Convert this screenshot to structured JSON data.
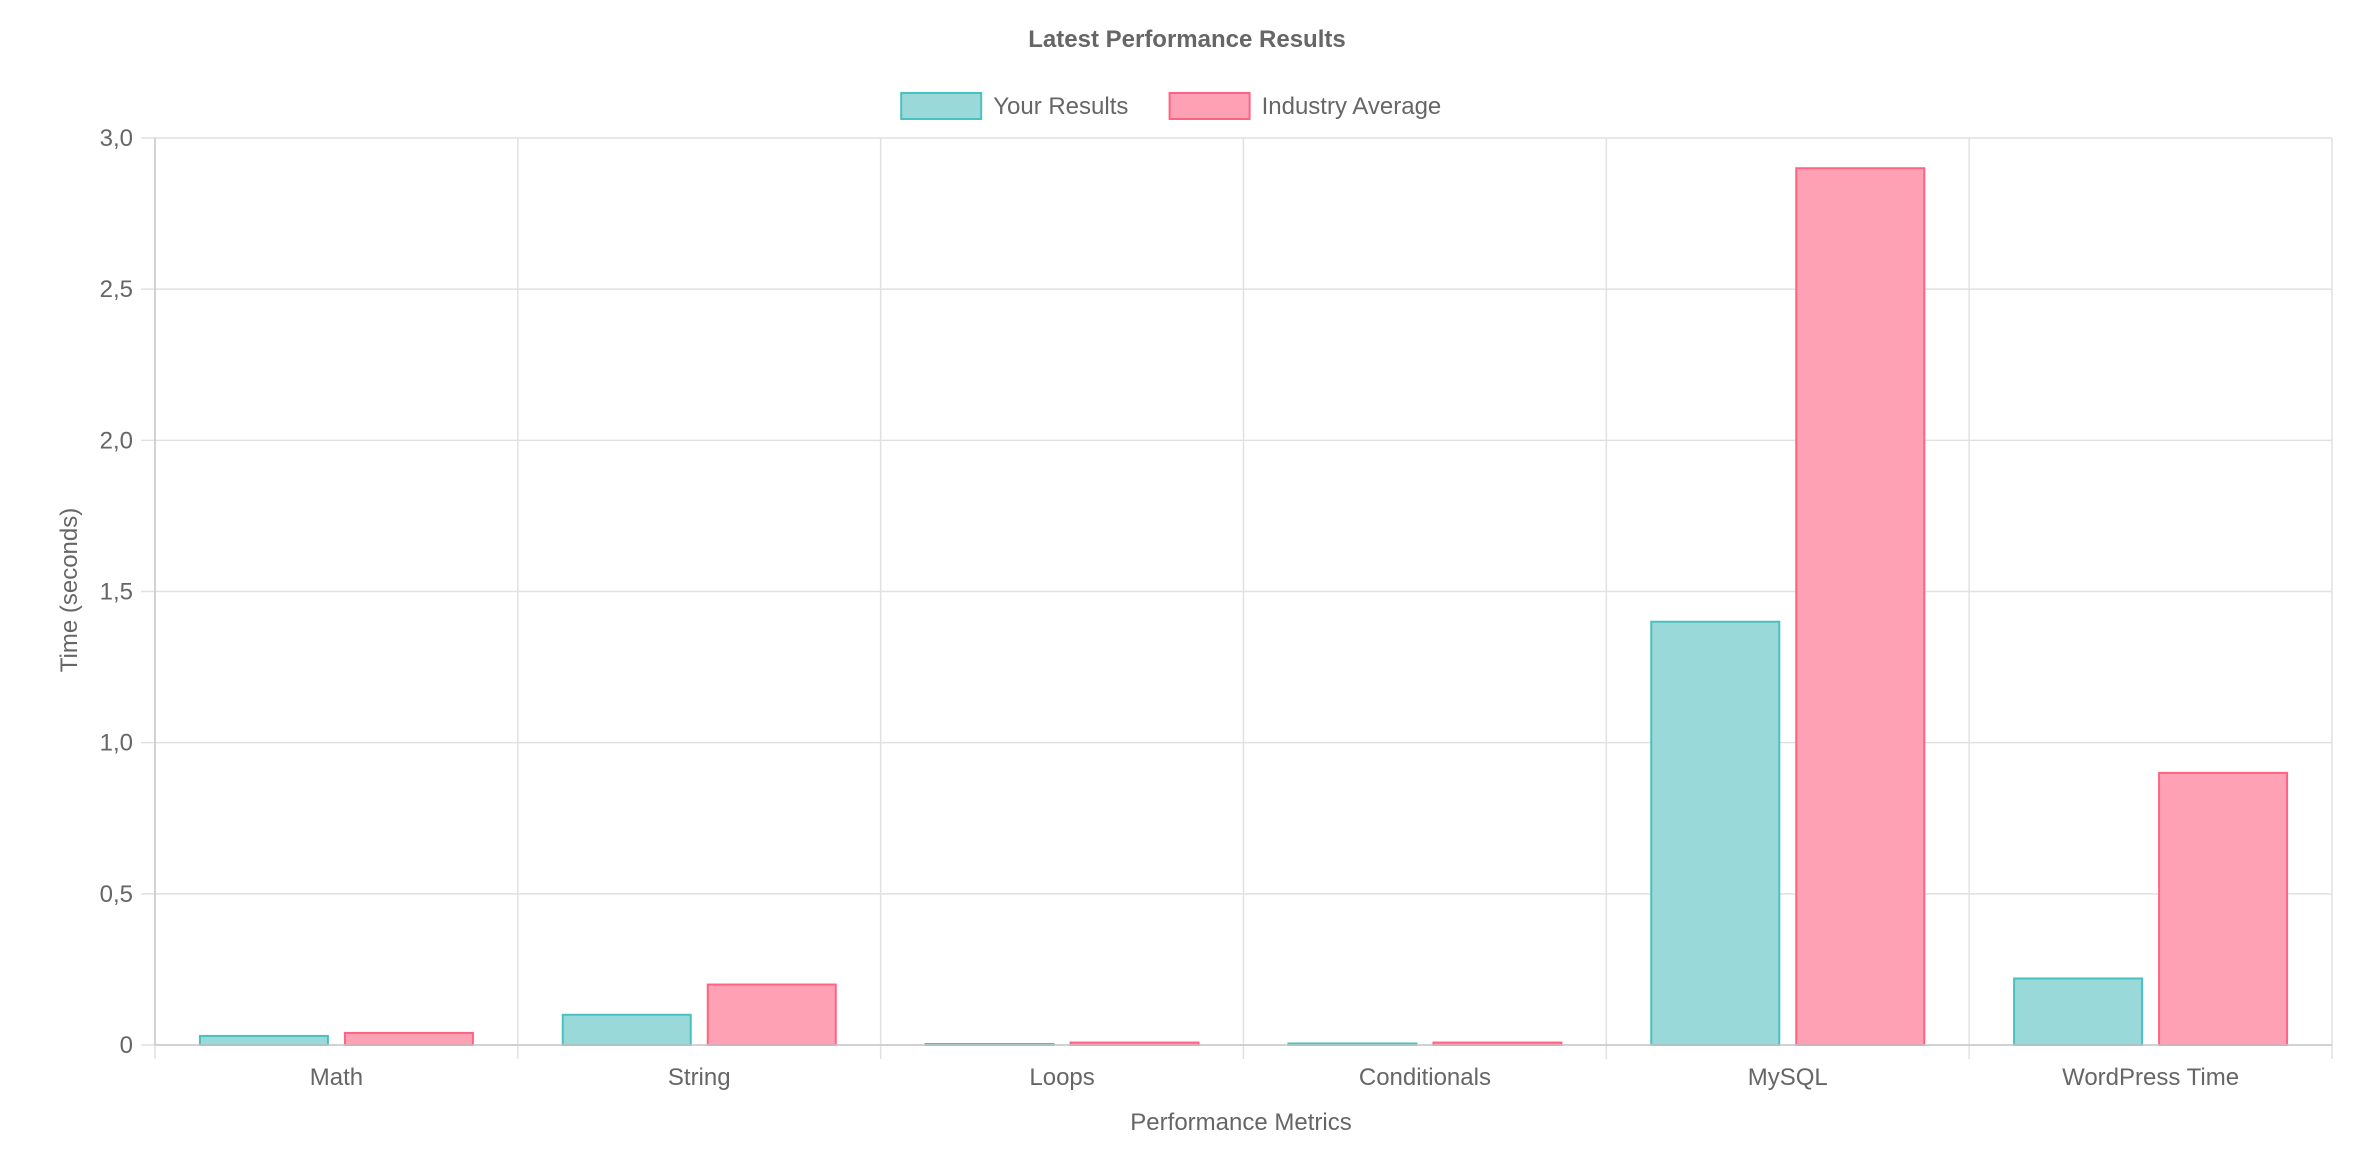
{
  "chart_data": {
    "type": "bar",
    "title": "Latest Performance Results",
    "xlabel": "Performance Metrics",
    "ylabel": "Time (seconds)",
    "categories": [
      "Math",
      "String",
      "Loops",
      "Conditionals",
      "MySQL",
      "WordPress Time"
    ],
    "series": [
      {
        "name": "Your Results",
        "values": [
          0.03,
          0.1,
          0.003,
          0.005,
          1.4,
          0.22
        ],
        "fill": "#9ad9d9",
        "stroke": "#4bc0c0"
      },
      {
        "name": "Industry Average",
        "values": [
          0.04,
          0.2,
          0.008,
          0.008,
          2.9,
          0.9
        ],
        "fill": "#ffa1b4",
        "stroke": "#ff6384"
      }
    ],
    "ylim": [
      0,
      3
    ],
    "yticks": [
      0,
      0.5,
      1,
      1.5,
      2,
      2.5,
      3
    ],
    "ytick_labels": [
      "0",
      "0,5",
      "1,0",
      "1,5",
      "2,0",
      "2,5",
      "3,0"
    ],
    "grid": true,
    "legend_position": "top-center"
  }
}
